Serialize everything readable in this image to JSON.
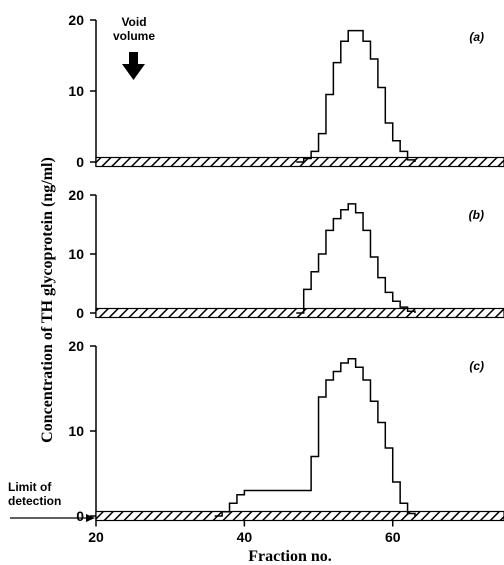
{
  "chart_data": [
    {
      "type": "line",
      "panel_label": "(a)",
      "y_ticks": [
        "0",
        "10",
        "20"
      ],
      "ylim": [
        0,
        20
      ],
      "series": [
        {
          "x": [
            47,
            48,
            49,
            50,
            51,
            52,
            53,
            54,
            55,
            56,
            57,
            58,
            59,
            60,
            61,
            62,
            63
          ],
          "values": [
            0,
            0.5,
            1.5,
            4,
            9.5,
            14,
            17,
            18.5,
            18.5,
            17,
            14.5,
            10.5,
            5.5,
            3,
            1.5,
            0.3,
            0
          ]
        }
      ]
    },
    {
      "type": "line",
      "panel_label": "(b)",
      "y_ticks": [
        "0",
        "10",
        "20"
      ],
      "ylim": [
        0,
        20
      ],
      "series": [
        {
          "x": [
            47,
            48,
            49,
            50,
            51,
            52,
            53,
            54,
            55,
            56,
            57,
            58,
            59,
            60,
            61,
            62,
            63
          ],
          "values": [
            0,
            4,
            7,
            10,
            14,
            16,
            17.5,
            18.5,
            17,
            14,
            9.5,
            6,
            3.5,
            2,
            1,
            0.3,
            0
          ]
        }
      ]
    },
    {
      "type": "line",
      "panel_label": "(c)",
      "y_ticks": [
        "0",
        "10",
        "20"
      ],
      "ylim": [
        0,
        20
      ],
      "series": [
        {
          "x": [
            36,
            37,
            38,
            39,
            40,
            48,
            49,
            50,
            51,
            52,
            53,
            54,
            55,
            56,
            57,
            58,
            59,
            60,
            61,
            62,
            63
          ],
          "values": [
            0,
            0.5,
            1.5,
            2.5,
            3,
            3,
            7,
            14,
            16,
            17,
            18,
            18.5,
            17.5,
            16,
            13.5,
            11,
            8,
            4,
            1.5,
            0.3,
            0
          ]
        }
      ]
    }
  ],
  "axes": {
    "xlim": [
      20,
      75
    ],
    "x_ticks": [
      "20",
      "40",
      "60"
    ],
    "xlabel": "Fraction no.",
    "ylabel": "Concentration of TH glycoprotein (ng/ml)"
  },
  "annotations": {
    "void_volume_line1": "Void",
    "void_volume_line2": "volume",
    "limit_line1": "Limit of",
    "limit_line2": "detection"
  },
  "colors": {
    "ink": "#000000",
    "background": "#ffffff"
  }
}
